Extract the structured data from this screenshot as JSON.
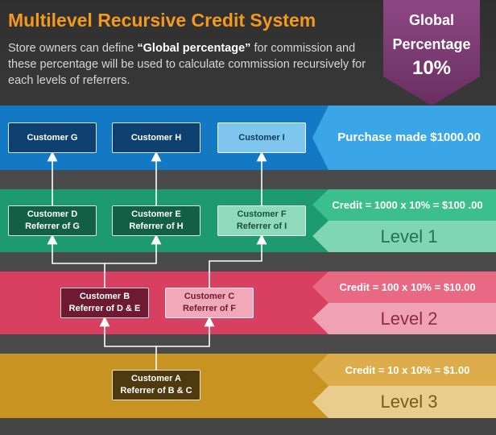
{
  "header": {
    "title": "Multilevel Recursive Credit System",
    "desc_pre": "Store owners can define ",
    "desc_highlight": "“Global percentage”",
    "desc_post": " for commission and these percentage will be used to calculate commission recursively for each levels of referrers."
  },
  "badge": {
    "line1": "Global",
    "line2": "Percentage",
    "value": "10%"
  },
  "colors": {
    "blue": "#1479c4",
    "green": "#1e9a70",
    "pink": "#d83f61",
    "gold": "#c99322",
    "badge": "#7a3b73"
  },
  "bands": {
    "purchase": {
      "text": "Purchase made $1000.00"
    },
    "level1": {
      "credit": "Credit = 1000 x 10% = $100 .00",
      "level": "Level 1"
    },
    "level2": {
      "credit": "Credit = 100 x 10% = $10.00",
      "level": "Level 2"
    },
    "level3": {
      "credit": "Credit = 10 x 10% = $1.00",
      "level": "Level 3"
    }
  },
  "nodes": {
    "g": {
      "line1": "Customer G"
    },
    "h": {
      "line1": "Customer H"
    },
    "i": {
      "line1": "Customer I"
    },
    "d": {
      "line1": "Customer D",
      "line2": "Referrer of G"
    },
    "e": {
      "line1": "Customer E",
      "line2": "Referrer of H"
    },
    "f": {
      "line1": "Customer F",
      "line2": "Referrer of I"
    },
    "b": {
      "line1": "Customer B",
      "line2": "Referrer of D & E"
    },
    "c": {
      "line1": "Customer C",
      "line2": "Referrer of F"
    },
    "a": {
      "line1": "Customer A",
      "line2": "Referrer of B & C"
    }
  }
}
